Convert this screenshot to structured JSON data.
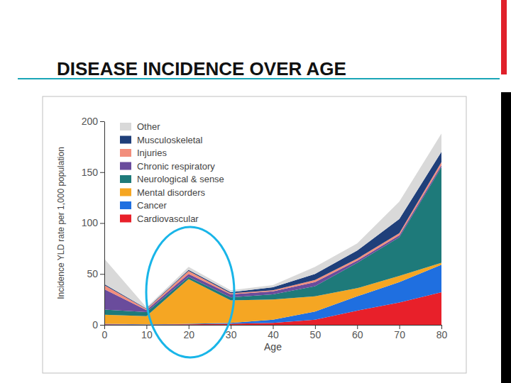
{
  "chart_data": {
    "type": "area",
    "title": "DISEASE INCIDENCE OVER AGE",
    "x_label": "Age",
    "y_label": "Incidence YLD rate per 1,000 population",
    "x": [
      0,
      10,
      20,
      30,
      40,
      50,
      60,
      70,
      80
    ],
    "xlim": [
      0,
      80
    ],
    "xticks": [
      0,
      10,
      20,
      30,
      40,
      50,
      60,
      70,
      80
    ],
    "ylim": [
      0,
      200
    ],
    "yticks": [
      0,
      50,
      100,
      150,
      200
    ],
    "stacked": true,
    "grid": false,
    "legend": "upper left",
    "series": [
      {
        "name": "Other",
        "color": "#d9d9d9",
        "values": [
          25,
          1,
          3,
          2,
          2,
          7,
          7,
          17,
          18
        ]
      },
      {
        "name": "Musculoskeletal",
        "color": "#1f3f7a",
        "values": [
          1,
          0.5,
          1,
          1,
          3,
          6,
          8,
          14,
          10
        ]
      },
      {
        "name": "Injuries",
        "color": "#f28e7c",
        "values": [
          4,
          1,
          3,
          1,
          1,
          2,
          2,
          2,
          3
        ]
      },
      {
        "name": "Chronic respiratory",
        "color": "#6a4c9c",
        "values": [
          20,
          2,
          3,
          3,
          3,
          4,
          2,
          2,
          2
        ]
      },
      {
        "name": "Neurological & sense",
        "color": "#1e7a7a",
        "values": [
          5,
          4,
          2,
          3,
          5,
          10,
          25,
          38,
          94
        ]
      },
      {
        "name": "Mental disorders",
        "color": "#f5a623",
        "values": [
          9,
          8,
          44,
          22,
          20,
          15,
          8,
          6,
          2
        ]
      },
      {
        "name": "Cancer",
        "color": "#1f6fe0",
        "values": [
          0.5,
          0.3,
          0.5,
          1,
          3,
          8,
          14,
          20,
          27
        ]
      },
      {
        "name": "Cardiovascular",
        "color": "#e8202a",
        "values": [
          0.5,
          0.2,
          0.5,
          1,
          2,
          5,
          14,
          22,
          32
        ]
      }
    ]
  }
}
